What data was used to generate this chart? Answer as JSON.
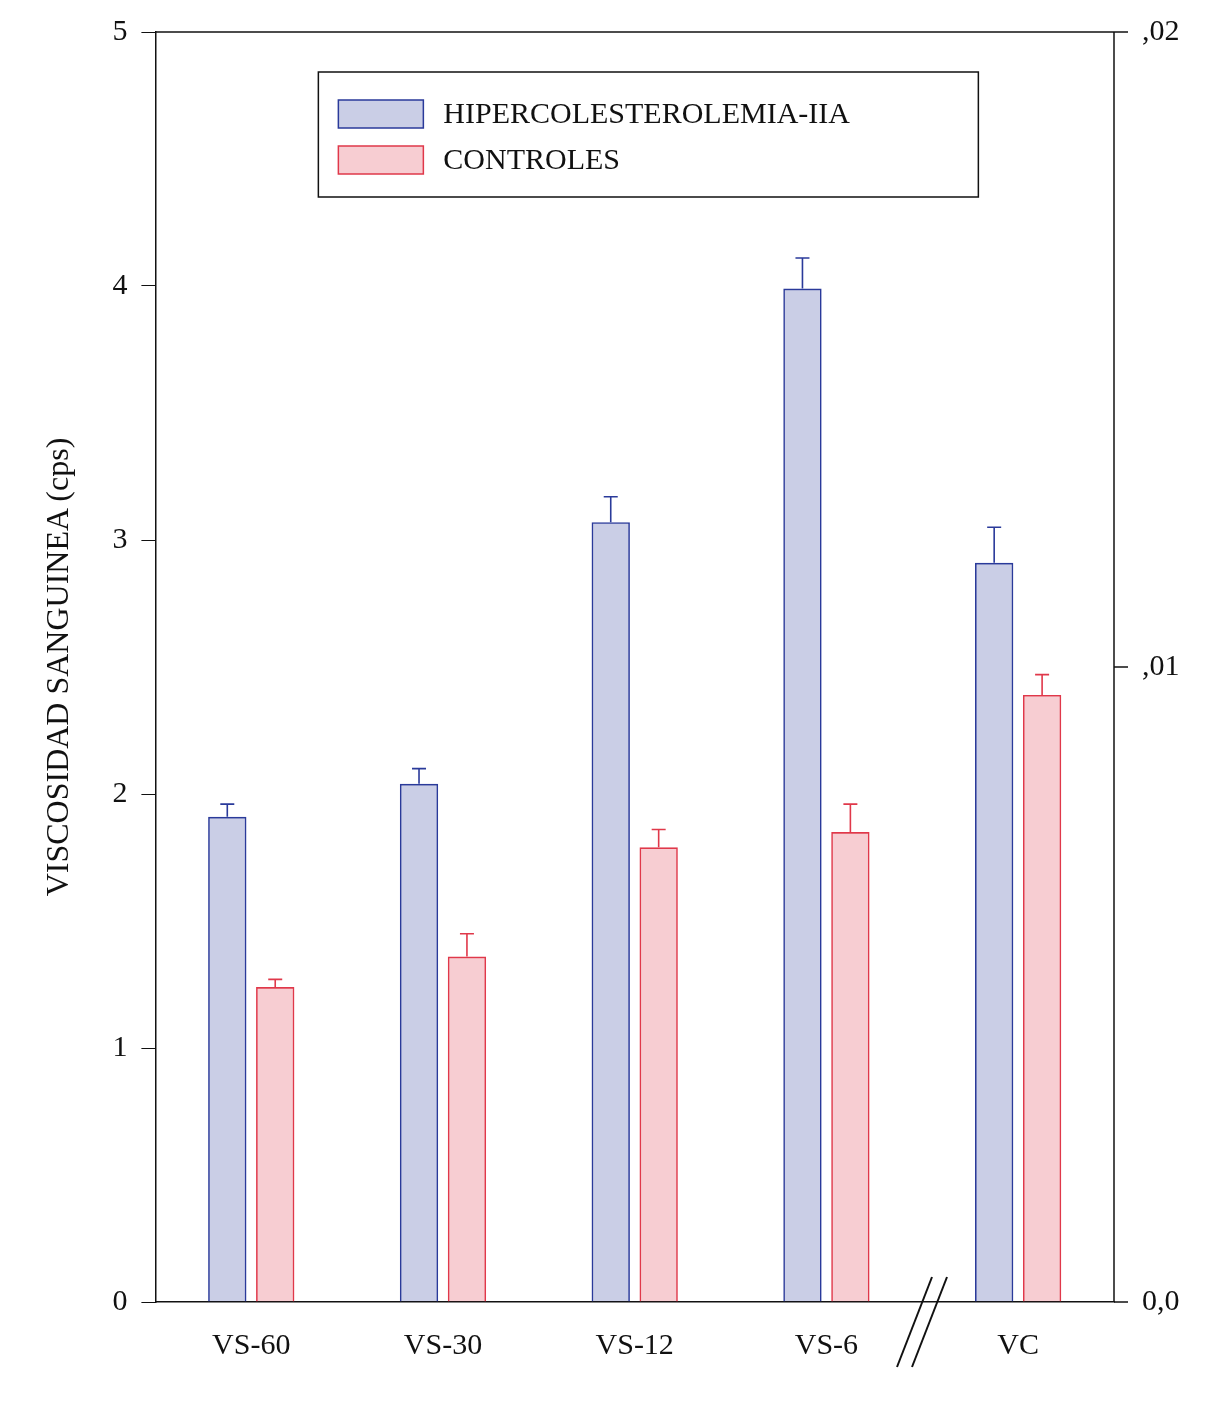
{
  "chart_data": {
    "type": "bar",
    "ylabel": "VISCOSIDAD SANGUINEA (cps)",
    "categories": [
      "VS-60",
      "VS-30",
      "VS-12",
      "VS-6",
      "VC"
    ],
    "series": [
      {
        "name": "HIPERCOLESTEROLEMIA-IIA",
        "color": "#2a3a9a",
        "values": [
          1.91,
          2.04,
          3.07,
          3.99,
          2.91
        ],
        "errors": [
          [
            1.91,
            1.96
          ],
          [
            2.04,
            2.1
          ],
          [
            3.07,
            3.17
          ],
          [
            3.99,
            4.11
          ],
          [
            2.91,
            3.05
          ]
        ]
      },
      {
        "name": "CONTROLES",
        "color": "#e0384a",
        "values": [
          1.24,
          1.36,
          1.79,
          1.85,
          2.39
        ],
        "errors": [
          [
            1.24,
            1.27
          ],
          [
            1.36,
            1.45
          ],
          [
            1.79,
            1.86
          ],
          [
            1.85,
            1.96
          ],
          [
            2.39,
            2.47
          ]
        ]
      }
    ],
    "ylim": [
      0,
      5
    ],
    "yticks": [
      0,
      1,
      2,
      3,
      4,
      5
    ],
    "annotations": [
      ",02",
      ",01",
      "0,0"
    ],
    "grid": false,
    "legend": "top"
  }
}
